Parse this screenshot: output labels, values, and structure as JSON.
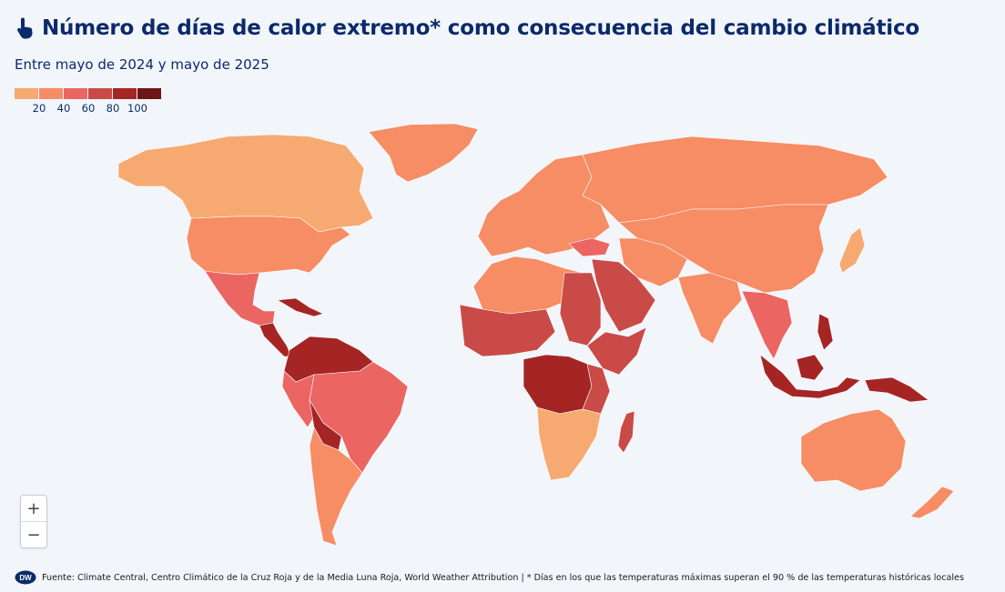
{
  "title": "Número de días de calor extremo* como consecuencia del cambio climático",
  "subtitle": "Entre mayo de 2024 y mayo de 2025",
  "legend": {
    "colors": [
      "#f6aa72",
      "#f68d65",
      "#eb6562",
      "#c94a47",
      "#a52525",
      "#6e1515"
    ],
    "labels": [
      "20",
      "40",
      "60",
      "80",
      "100"
    ]
  },
  "controls": {
    "zoom_in": "+",
    "zoom_out": "−"
  },
  "footer": {
    "logo": "DW",
    "text": "Fuente: Climate Central, Centro Climático de la Cruz Roja y de la Media Luna Roja, World Weather Attribution | * Días en los que las temperaturas máximas superan el 90 % de las temperaturas históricas locales"
  },
  "colors": {
    "title": "#0b2a6b",
    "background": "#f2f6fb",
    "no_data": "#e3e3e3"
  },
  "icons": {
    "title_icon": "hand-pointer-icon"
  }
}
